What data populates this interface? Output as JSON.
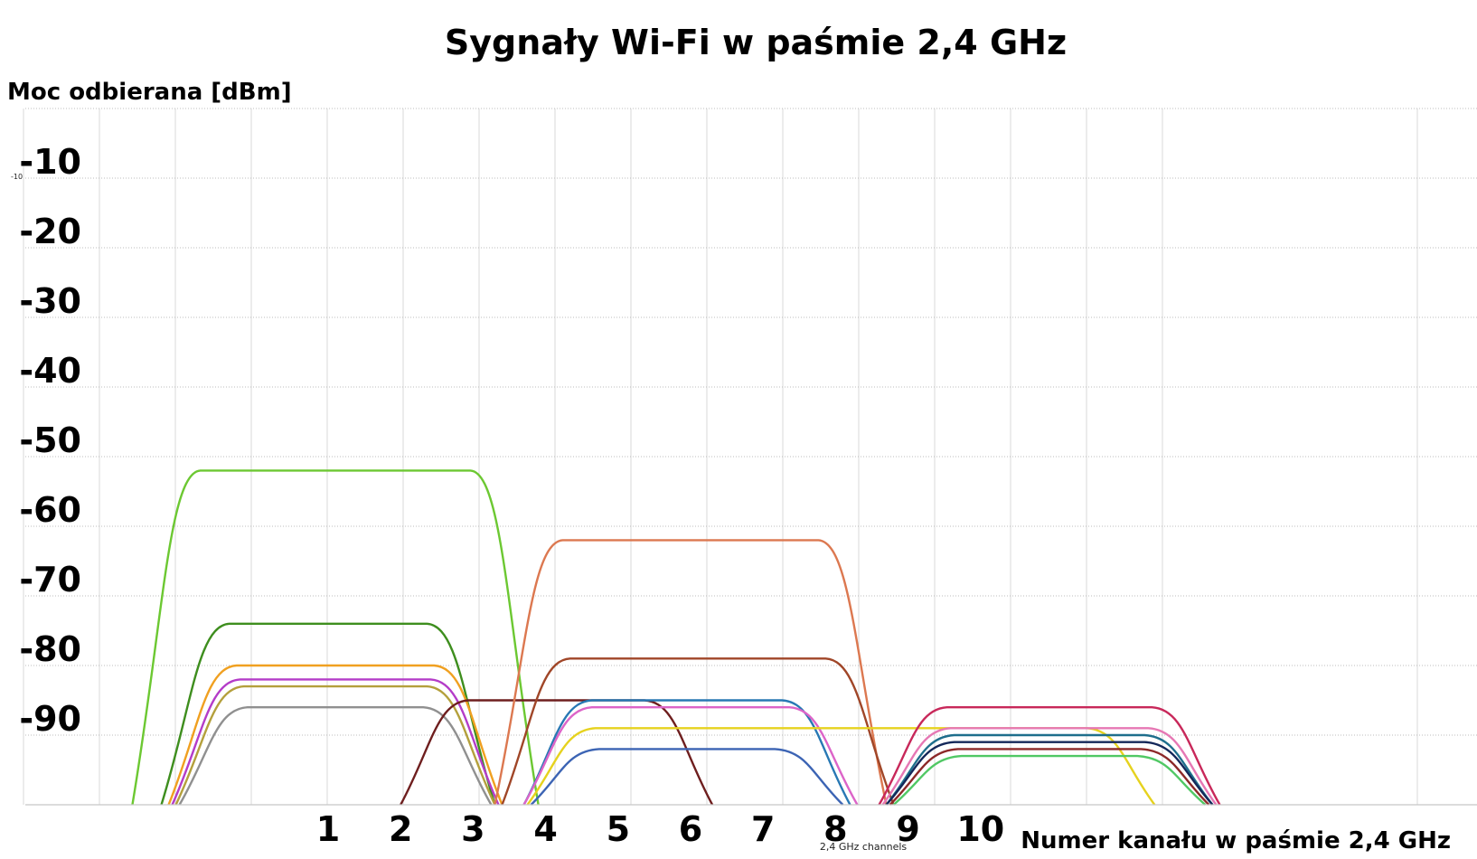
{
  "chart_data": {
    "type": "line",
    "title": "Sygnały Wi-Fi w paśmie 2,4 GHz",
    "ylabel": "Moc odbierana [dBm]",
    "xlabel": "Numer kanału w paśmie 2,4 GHz",
    "x_sublabel": "2,4 GHz channels",
    "small_tick_label": "-10",
    "yticks": [
      "-10",
      "-20",
      "-30",
      "-40",
      "-50",
      "-60",
      "-70",
      "-80",
      "-90"
    ],
    "ytick_values": [
      -10,
      -20,
      -30,
      -40,
      -50,
      -60,
      -70,
      -80,
      -90
    ],
    "xticks": [
      "1",
      "2",
      "3",
      "4",
      "5",
      "6",
      "7",
      "8",
      "9",
      "10"
    ],
    "xtick_values": [
      1,
      2,
      3,
      4,
      5,
      6,
      7,
      8,
      9,
      10
    ],
    "xlim": [
      -2.5,
      15
    ],
    "ylim": [
      -100,
      0
    ],
    "grid": true,
    "legend": "none",
    "series": [
      {
        "x_start": -1.7,
        "x_end": 3.9,
        "peak": -52,
        "color": "#6cc832"
      },
      {
        "x_start": -1.3,
        "x_end": 3.3,
        "peak": -74,
        "color": "#3e8e1e"
      },
      {
        "x_start": -1.2,
        "x_end": 3.4,
        "peak": -80,
        "color": "#f0a020"
      },
      {
        "x_start": -1.15,
        "x_end": 3.35,
        "peak": -82,
        "color": "#b43cc8"
      },
      {
        "x_start": -1.1,
        "x_end": 3.3,
        "peak": -83,
        "color": "#b4a03c"
      },
      {
        "x_start": -1.05,
        "x_end": 3.25,
        "peak": -86,
        "color": "#909090"
      },
      {
        "x_start": 2.0,
        "x_end": 6.3,
        "peak": -85,
        "color": "#6e1e1e"
      },
      {
        "x_start": 3.3,
        "x_end": 8.7,
        "peak": -62,
        "color": "#dc7850"
      },
      {
        "x_start": 3.4,
        "x_end": 8.8,
        "peak": -79,
        "color": "#a04628"
      },
      {
        "x_start": 3.7,
        "x_end": 8.2,
        "peak": -85,
        "color": "#2878b4"
      },
      {
        "x_start": 3.7,
        "x_end": 8.3,
        "peak": -86,
        "color": "#dc64c8"
      },
      {
        "x_start": 3.75,
        "x_end": 12.4,
        "peak": -89,
        "color": "#e6d21e"
      },
      {
        "x_start": 3.8,
        "x_end": 8.1,
        "peak": -92,
        "color": "#3c64b4"
      },
      {
        "x_start": 8.6,
        "x_end": 13.3,
        "peak": -86,
        "color": "#c8285a"
      },
      {
        "x_start": 8.65,
        "x_end": 13.25,
        "peak": -89,
        "color": "#e678b4"
      },
      {
        "x_start": 8.7,
        "x_end": 13.2,
        "peak": -90,
        "color": "#1e6e8c"
      },
      {
        "x_start": 8.7,
        "x_end": 13.2,
        "peak": -91,
        "color": "#14285a"
      },
      {
        "x_start": 8.75,
        "x_end": 13.15,
        "peak": -92,
        "color": "#8c2828"
      },
      {
        "x_start": 8.8,
        "x_end": 13.1,
        "peak": -93,
        "color": "#50c864"
      }
    ]
  }
}
